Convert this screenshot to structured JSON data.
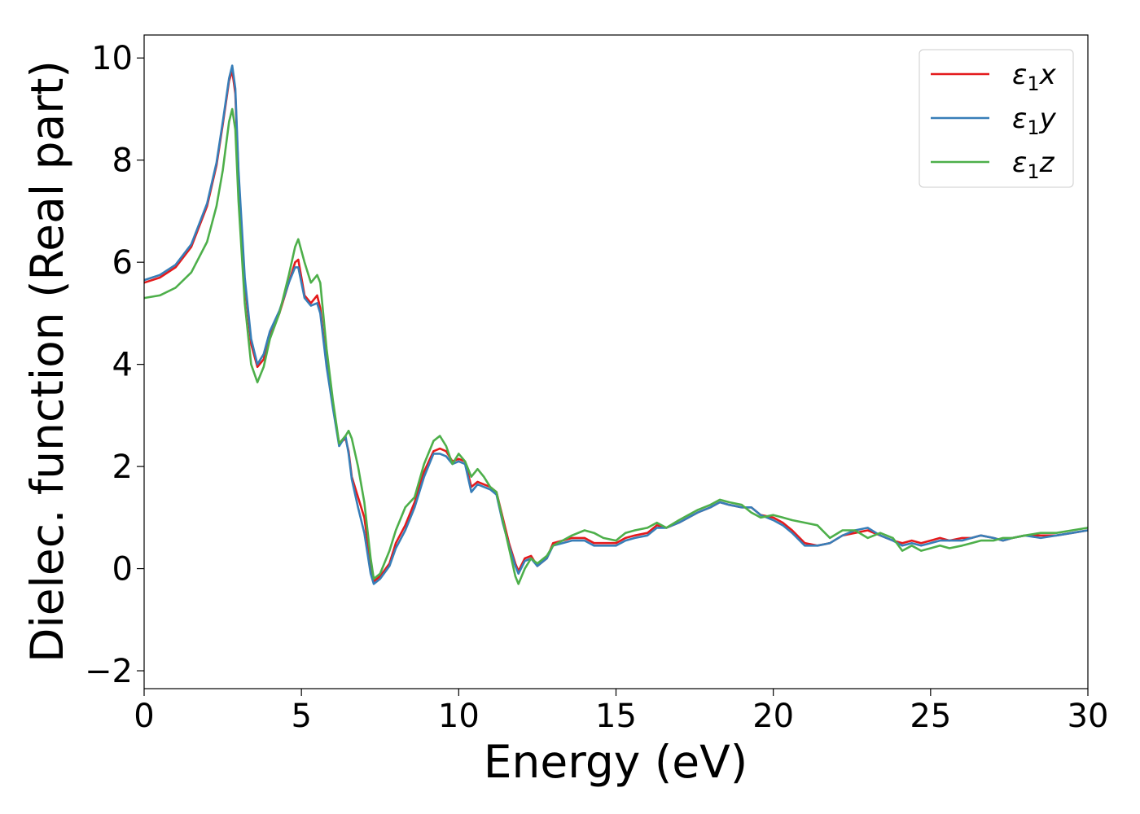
{
  "chart_data": {
    "type": "line",
    "xlabel": "Energy (eV)",
    "ylabel": "Dielec. function (Real part)",
    "xlim": [
      0,
      30
    ],
    "ylim": [
      -2.35,
      10.45
    ],
    "xticks": [
      0,
      5,
      10,
      15,
      20,
      25,
      30
    ],
    "yticks": [
      -2,
      0,
      2,
      4,
      6,
      8,
      10
    ],
    "xtick_labels": [
      "0",
      "5",
      "10",
      "15",
      "20",
      "25",
      "30"
    ],
    "ytick_labels": [
      "−2",
      "0",
      "2",
      "4",
      "6",
      "8",
      "10"
    ],
    "grid": false,
    "legend_position": "top-right",
    "series": [
      {
        "name": "ε1x",
        "name_base": "ε",
        "name_sub": "1",
        "name_var": "x",
        "color": "#e41a1c",
        "x": [
          0,
          0.5,
          1.0,
          1.5,
          2.0,
          2.3,
          2.5,
          2.7,
          2.8,
          2.9,
          3.0,
          3.2,
          3.4,
          3.6,
          3.8,
          4.0,
          4.3,
          4.6,
          4.8,
          4.9,
          5.1,
          5.3,
          5.5,
          5.6,
          5.8,
          6.0,
          6.2,
          6.4,
          6.5,
          6.6,
          6.8,
          7.0,
          7.2,
          7.3,
          7.5,
          7.8,
          8.0,
          8.3,
          8.6,
          8.9,
          9.2,
          9.4,
          9.6,
          9.8,
          10.0,
          10.2,
          10.4,
          10.6,
          10.8,
          11.0,
          11.2,
          11.4,
          11.6,
          11.8,
          11.9,
          12.1,
          12.3,
          12.5,
          12.8,
          13.0,
          13.3,
          13.6,
          14.0,
          14.3,
          14.6,
          15.0,
          15.3,
          15.6,
          16.0,
          16.3,
          16.6,
          17.0,
          17.3,
          17.6,
          18.0,
          18.3,
          18.6,
          19.0,
          19.3,
          19.6,
          20.0,
          20.3,
          20.6,
          21.0,
          21.4,
          21.8,
          22.2,
          22.6,
          23.0,
          23.4,
          23.8,
          24.1,
          24.4,
          24.7,
          25.0,
          25.3,
          25.6,
          26.0,
          26.3,
          26.6,
          27.0,
          27.3,
          27.6,
          28.0,
          28.5,
          29.0,
          29.5,
          30.0
        ],
        "values": [
          5.6,
          5.7,
          5.9,
          6.3,
          7.1,
          7.9,
          8.7,
          9.55,
          9.75,
          9.3,
          7.7,
          5.6,
          4.4,
          3.95,
          4.1,
          4.6,
          5.0,
          5.6,
          6.0,
          6.05,
          5.35,
          5.2,
          5.35,
          5.1,
          4.0,
          3.2,
          2.45,
          2.55,
          2.3,
          1.8,
          1.4,
          1.0,
          0.1,
          -0.25,
          -0.15,
          0.1,
          0.5,
          0.85,
          1.3,
          1.9,
          2.3,
          2.35,
          2.3,
          2.1,
          2.15,
          2.1,
          1.6,
          1.7,
          1.65,
          1.6,
          1.5,
          1.0,
          0.5,
          0.1,
          -0.05,
          0.2,
          0.25,
          0.05,
          0.2,
          0.5,
          0.55,
          0.6,
          0.6,
          0.5,
          0.5,
          0.5,
          0.6,
          0.65,
          0.7,
          0.85,
          0.8,
          0.9,
          1.0,
          1.1,
          1.2,
          1.3,
          1.25,
          1.2,
          1.2,
          1.05,
          1.0,
          0.9,
          0.75,
          0.5,
          0.45,
          0.5,
          0.65,
          0.7,
          0.75,
          0.65,
          0.55,
          0.5,
          0.55,
          0.5,
          0.55,
          0.6,
          0.55,
          0.6,
          0.6,
          0.65,
          0.6,
          0.55,
          0.6,
          0.65,
          0.65,
          0.65,
          0.7,
          0.75
        ]
      },
      {
        "name": "ε1y",
        "name_base": "ε",
        "name_sub": "1",
        "name_var": "y",
        "color": "#377eb8",
        "x": [
          0,
          0.5,
          1.0,
          1.5,
          2.0,
          2.3,
          2.5,
          2.7,
          2.8,
          2.9,
          3.0,
          3.2,
          3.4,
          3.6,
          3.8,
          4.0,
          4.3,
          4.6,
          4.8,
          4.9,
          5.1,
          5.3,
          5.5,
          5.6,
          5.8,
          6.0,
          6.2,
          6.4,
          6.5,
          6.6,
          6.8,
          7.0,
          7.2,
          7.3,
          7.5,
          7.8,
          8.0,
          8.3,
          8.6,
          8.9,
          9.2,
          9.4,
          9.6,
          9.8,
          10.0,
          10.2,
          10.4,
          10.6,
          10.8,
          11.0,
          11.2,
          11.4,
          11.6,
          11.8,
          11.9,
          12.1,
          12.3,
          12.5,
          12.8,
          13.0,
          13.3,
          13.6,
          14.0,
          14.3,
          14.6,
          15.0,
          15.3,
          15.6,
          16.0,
          16.3,
          16.6,
          17.0,
          17.3,
          17.6,
          18.0,
          18.3,
          18.6,
          19.0,
          19.3,
          19.6,
          20.0,
          20.3,
          20.6,
          21.0,
          21.4,
          21.8,
          22.2,
          22.6,
          23.0,
          23.4,
          23.8,
          24.1,
          24.4,
          24.7,
          25.0,
          25.3,
          25.6,
          26.0,
          26.3,
          26.6,
          27.0,
          27.3,
          27.6,
          28.0,
          28.5,
          29.0,
          29.5,
          30.0
        ],
        "values": [
          5.65,
          5.75,
          5.95,
          6.35,
          7.15,
          7.95,
          8.75,
          9.6,
          9.85,
          9.4,
          7.8,
          5.7,
          4.5,
          4.0,
          4.2,
          4.65,
          5.05,
          5.6,
          5.9,
          5.9,
          5.3,
          5.15,
          5.2,
          5.0,
          3.95,
          3.15,
          2.4,
          2.6,
          2.25,
          1.75,
          1.2,
          0.7,
          -0.1,
          -0.3,
          -0.2,
          0.05,
          0.4,
          0.75,
          1.2,
          1.8,
          2.25,
          2.25,
          2.2,
          2.05,
          2.1,
          2.05,
          1.5,
          1.65,
          1.6,
          1.55,
          1.45,
          0.9,
          0.45,
          0.05,
          -0.1,
          0.15,
          0.2,
          0.05,
          0.2,
          0.45,
          0.5,
          0.55,
          0.55,
          0.45,
          0.45,
          0.45,
          0.55,
          0.6,
          0.65,
          0.8,
          0.8,
          0.9,
          1.0,
          1.1,
          1.2,
          1.3,
          1.25,
          1.2,
          1.2,
          1.05,
          0.95,
          0.85,
          0.7,
          0.45,
          0.45,
          0.5,
          0.65,
          0.75,
          0.8,
          0.65,
          0.55,
          0.45,
          0.5,
          0.45,
          0.5,
          0.55,
          0.55,
          0.55,
          0.6,
          0.65,
          0.6,
          0.55,
          0.6,
          0.65,
          0.6,
          0.65,
          0.7,
          0.75
        ]
      },
      {
        "name": "ε1z",
        "name_base": "ε",
        "name_sub": "1",
        "name_var": "z",
        "color": "#4daf4a",
        "x": [
          0,
          0.5,
          1.0,
          1.5,
          2.0,
          2.3,
          2.5,
          2.7,
          2.8,
          2.9,
          3.0,
          3.2,
          3.4,
          3.6,
          3.8,
          4.0,
          4.3,
          4.6,
          4.8,
          4.9,
          5.1,
          5.3,
          5.5,
          5.6,
          5.8,
          6.0,
          6.2,
          6.4,
          6.5,
          6.6,
          6.8,
          7.0,
          7.2,
          7.3,
          7.5,
          7.8,
          8.0,
          8.3,
          8.6,
          8.9,
          9.2,
          9.4,
          9.6,
          9.8,
          10.0,
          10.2,
          10.4,
          10.6,
          10.8,
          11.0,
          11.2,
          11.4,
          11.6,
          11.8,
          11.9,
          12.1,
          12.3,
          12.5,
          12.8,
          13.0,
          13.3,
          13.6,
          14.0,
          14.3,
          14.6,
          15.0,
          15.3,
          15.6,
          16.0,
          16.3,
          16.6,
          17.0,
          17.3,
          17.6,
          18.0,
          18.3,
          18.6,
          19.0,
          19.3,
          19.6,
          20.0,
          20.3,
          20.6,
          21.0,
          21.4,
          21.8,
          22.2,
          22.6,
          23.0,
          23.4,
          23.8,
          24.1,
          24.4,
          24.7,
          25.0,
          25.3,
          25.6,
          26.0,
          26.3,
          26.6,
          27.0,
          27.3,
          27.6,
          28.0,
          28.5,
          29.0,
          29.5,
          30.0
        ],
        "values": [
          5.3,
          5.35,
          5.5,
          5.8,
          6.4,
          7.1,
          7.8,
          8.75,
          9.0,
          8.6,
          7.2,
          5.2,
          4.0,
          3.65,
          3.95,
          4.5,
          5.0,
          5.75,
          6.3,
          6.45,
          6.0,
          5.6,
          5.75,
          5.6,
          4.3,
          3.3,
          2.45,
          2.6,
          2.7,
          2.55,
          2.0,
          1.3,
          0.2,
          -0.2,
          -0.1,
          0.35,
          0.75,
          1.2,
          1.4,
          2.05,
          2.5,
          2.6,
          2.4,
          2.05,
          2.25,
          2.1,
          1.8,
          1.95,
          1.8,
          1.6,
          1.5,
          0.95,
          0.4,
          -0.15,
          -0.3,
          0.0,
          0.2,
          0.1,
          0.25,
          0.45,
          0.55,
          0.65,
          0.75,
          0.7,
          0.6,
          0.55,
          0.7,
          0.75,
          0.8,
          0.9,
          0.8,
          0.95,
          1.05,
          1.15,
          1.25,
          1.35,
          1.3,
          1.25,
          1.1,
          1.0,
          1.05,
          1.0,
          0.95,
          0.9,
          0.85,
          0.6,
          0.75,
          0.75,
          0.6,
          0.7,
          0.6,
          0.35,
          0.45,
          0.35,
          0.4,
          0.45,
          0.4,
          0.45,
          0.5,
          0.55,
          0.55,
          0.6,
          0.6,
          0.65,
          0.7,
          0.7,
          0.75,
          0.8
        ]
      }
    ]
  }
}
